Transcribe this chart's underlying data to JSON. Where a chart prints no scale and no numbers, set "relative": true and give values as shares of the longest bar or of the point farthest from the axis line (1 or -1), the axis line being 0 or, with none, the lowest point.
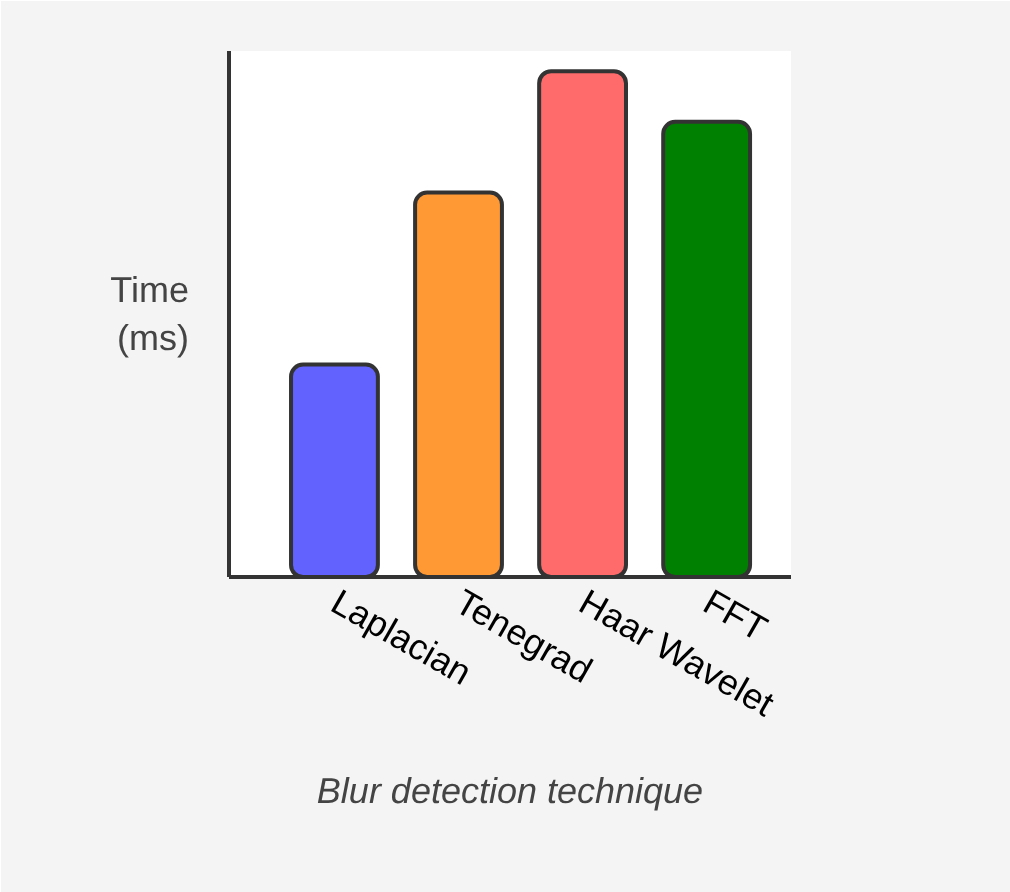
{
  "chart_data": {
    "type": "bar",
    "relative": true,
    "xlabel": "Blur detection technique",
    "ylabel": "Time\n(ms)",
    "categories": [
      "Laplacian",
      "Tenegrad",
      "Haar Wavelet",
      "FFT"
    ],
    "values": [
      0.42,
      0.76,
      1,
      0.9
    ],
    "colors": [
      "#6262ff",
      "#ff9933",
      "#ff6b6b",
      "#008000"
    ]
  }
}
